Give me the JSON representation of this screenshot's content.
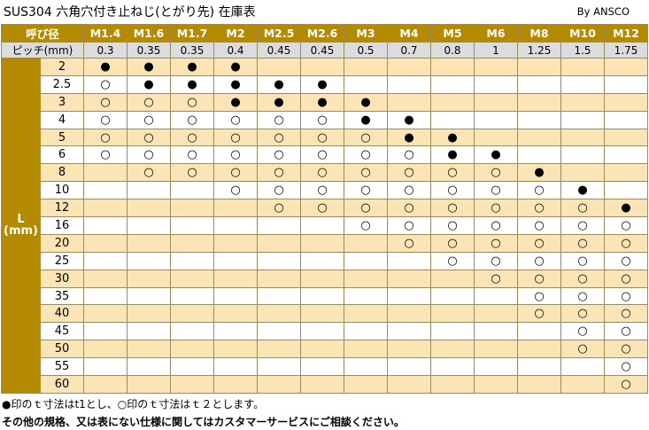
{
  "title": "SUS304 六角穴付き止ねじ(とがり先) 在庫表",
  "byline": "By ANSCO",
  "header_label": "呼び径",
  "pitch_label": "ピッチ(mm)",
  "l_label": "L",
  "l_unit": "(mm)",
  "sizes": [
    "M1.4",
    "M1.6",
    "M1.7",
    "M2",
    "M2.5",
    "M2.6",
    "M3",
    "M4",
    "M5",
    "M6",
    "M8",
    "M10",
    "M12"
  ],
  "pitches": [
    "0.3",
    "0.35",
    "0.35",
    "0.4",
    "0.45",
    "0.45",
    "0.5",
    "0.7",
    "0.8",
    "1",
    "1.25",
    "1.5",
    "1.75"
  ],
  "lengths": [
    "2",
    "2.5",
    "3",
    "4",
    "5",
    "6",
    "8",
    "10",
    "12",
    "16",
    "20",
    "25",
    "30",
    "35",
    "40",
    "45",
    "50",
    "55",
    "60"
  ],
  "matrix": [
    [
      "●",
      "●",
      "●",
      "●",
      "",
      "",
      "",
      "",
      "",
      "",
      "",
      "",
      ""
    ],
    [
      "○",
      "●",
      "●",
      "●",
      "●",
      "●",
      "",
      "",
      "",
      "",
      "",
      "",
      ""
    ],
    [
      "○",
      "○",
      "○",
      "●",
      "●",
      "●",
      "●",
      "",
      "",
      "",
      "",
      "",
      ""
    ],
    [
      "○",
      "○",
      "○",
      "○",
      "○",
      "○",
      "●",
      "●",
      "",
      "",
      "",
      "",
      ""
    ],
    [
      "○",
      "○",
      "○",
      "○",
      "○",
      "○",
      "○",
      "●",
      "●",
      "",
      "",
      "",
      ""
    ],
    [
      "○",
      "○",
      "○",
      "○",
      "○",
      "○",
      "○",
      "○",
      "●",
      "●",
      "",
      "",
      ""
    ],
    [
      "",
      "○",
      "○",
      "○",
      "○",
      "○",
      "○",
      "○",
      "○",
      "○",
      "●",
      "",
      ""
    ],
    [
      "",
      "",
      "",
      "○",
      "○",
      "○",
      "○",
      "○",
      "○",
      "○",
      "○",
      "●",
      ""
    ],
    [
      "",
      "",
      "",
      "",
      "○",
      "○",
      "○",
      "○",
      "○",
      "○",
      "○",
      "○",
      "●"
    ],
    [
      "",
      "",
      "",
      "",
      "",
      "",
      "○",
      "○",
      "○",
      "○",
      "○",
      "○",
      "○"
    ],
    [
      "",
      "",
      "",
      "",
      "",
      "",
      "",
      "○",
      "○",
      "○",
      "○",
      "○",
      "○"
    ],
    [
      "",
      "",
      "",
      "",
      "",
      "",
      "",
      "",
      "○",
      "○",
      "○",
      "○",
      "○"
    ],
    [
      "",
      "",
      "",
      "",
      "",
      "",
      "",
      "",
      "",
      "○",
      "○",
      "○",
      "○"
    ],
    [
      "",
      "",
      "",
      "",
      "",
      "",
      "",
      "",
      "",
      "",
      "○",
      "○",
      "○"
    ],
    [
      "",
      "",
      "",
      "",
      "",
      "",
      "",
      "",
      "",
      "",
      "○",
      "○",
      "○"
    ],
    [
      "",
      "",
      "",
      "",
      "",
      "",
      "",
      "",
      "",
      "",
      "",
      "○",
      "○"
    ],
    [
      "",
      "",
      "",
      "",
      "",
      "",
      "",
      "",
      "",
      "",
      "",
      "○",
      "○"
    ],
    [
      "",
      "",
      "",
      "",
      "",
      "",
      "",
      "",
      "",
      "",
      "",
      "",
      "○"
    ],
    [
      "",
      "",
      "",
      "",
      "",
      "",
      "",
      "",
      "",
      "",
      "",
      "",
      "○"
    ]
  ],
  "footnote_1": "●印のｔ寸法はt1とし、○印のｔ寸法はｔ２とします。",
  "footnote_2": "その他の規格、又は表にない仕様に関してはカスタマーサービスにご相談ください。"
}
